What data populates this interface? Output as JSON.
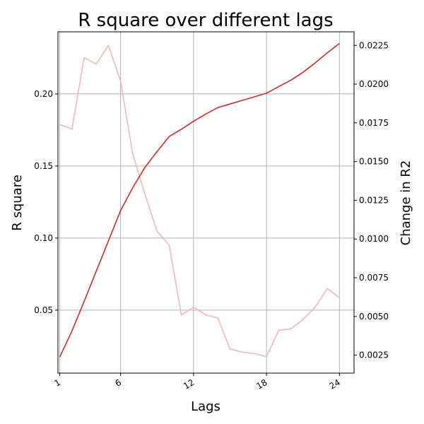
{
  "chart_data": {
    "type": "line",
    "title": "R square over different lags",
    "xlabel": "Lags",
    "ylabel": "R square",
    "y2label": "Change in R2",
    "grid": true,
    "x": [
      1,
      2,
      3,
      4,
      5,
      6,
      7,
      8,
      9,
      10,
      11,
      12,
      13,
      14,
      15,
      16,
      17,
      18,
      19,
      20,
      21,
      22,
      23,
      24
    ],
    "x_ticks": [
      1,
      6,
      12,
      18,
      24
    ],
    "xlim": [
      0.85,
      25.2
    ],
    "y_ticks": [
      0.05,
      0.1,
      0.15,
      0.2
    ],
    "y_tick_labels": [
      "0.05",
      "0.10",
      "0.15",
      "0.20"
    ],
    "ylim": [
      0.0063,
      0.2431
    ],
    "y2_ticks": [
      0.0025,
      0.005,
      0.0075,
      0.01,
      0.0125,
      0.015,
      0.0175,
      0.02,
      0.0225
    ],
    "y2_tick_labels": [
      "0.0025",
      "0.0050",
      "0.0075",
      "0.0100",
      "0.0125",
      "0.0150",
      "0.0175",
      "0.0200",
      "0.0225"
    ],
    "y2lim": [
      0.00134,
      0.02338
    ],
    "series": [
      {
        "axis": "left",
        "color": "#cc2a2a",
        "values": [
          0.0175,
          0.0355,
          0.056,
          0.077,
          0.098,
          0.119,
          0.135,
          0.149,
          0.16,
          0.1705,
          0.1755,
          0.181,
          0.186,
          0.1905,
          0.193,
          0.1955,
          0.198,
          0.2005,
          0.205,
          0.2095,
          0.215,
          0.2215,
          0.2285,
          0.235
        ]
      },
      {
        "axis": "right",
        "color": "#f0b7b7",
        "values": [
          0.0174,
          0.0171,
          0.0217,
          0.0213,
          0.0225,
          0.0202,
          0.0155,
          0.0129,
          0.0105,
          0.0096,
          0.0051,
          0.0056,
          0.0051,
          0.0049,
          0.0029,
          0.0027,
          0.0026,
          0.0024,
          0.0041,
          0.0042,
          0.0048,
          0.0056,
          0.0068,
          0.0062
        ]
      }
    ]
  }
}
